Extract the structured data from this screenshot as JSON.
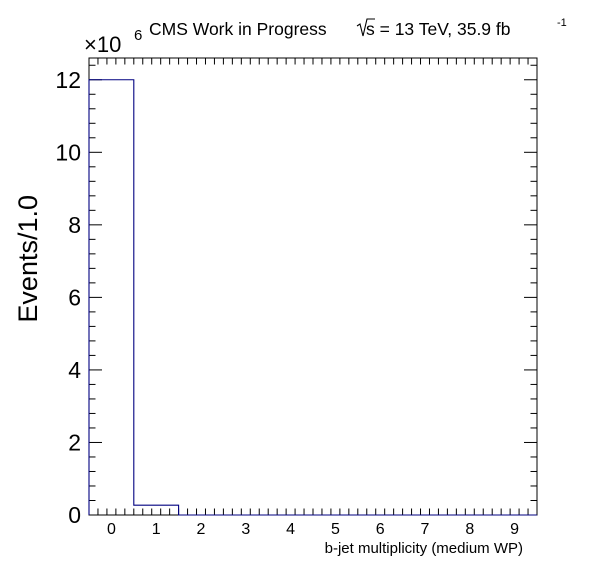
{
  "chart_data": {
    "type": "bar",
    "style": "step-histogram",
    "title": "CMS Work in Progress",
    "energy_prefix": "s = 13 TeV, 35.9 fb",
    "lumi_exponent": "-1",
    "xlabel": "b-jet multiplicity (medium WP)",
    "ylabel": "Events/1.0",
    "y_multiplier_base": "×10",
    "y_multiplier_exponent": "6",
    "categories": [
      "0",
      "1",
      "2",
      "3",
      "4",
      "5",
      "6",
      "7",
      "8",
      "9"
    ],
    "bin_edges": [
      -0.5,
      0.5,
      1.5,
      2.5,
      3.5,
      4.5,
      5.5,
      6.5,
      7.5,
      8.5,
      9.5
    ],
    "values": [
      12.0,
      0.27,
      0,
      0,
      0,
      0,
      0,
      0,
      0,
      0
    ],
    "xlim": [
      -0.5,
      9.5
    ],
    "ylim": [
      0,
      12.6
    ],
    "x_ticks": [
      "0",
      "1",
      "2",
      "3",
      "4",
      "5",
      "6",
      "7",
      "8",
      "9"
    ],
    "y_ticks": [
      "0",
      "2",
      "4",
      "6",
      "8",
      "10",
      "12"
    ],
    "line_color": "#000080",
    "grid": false
  }
}
